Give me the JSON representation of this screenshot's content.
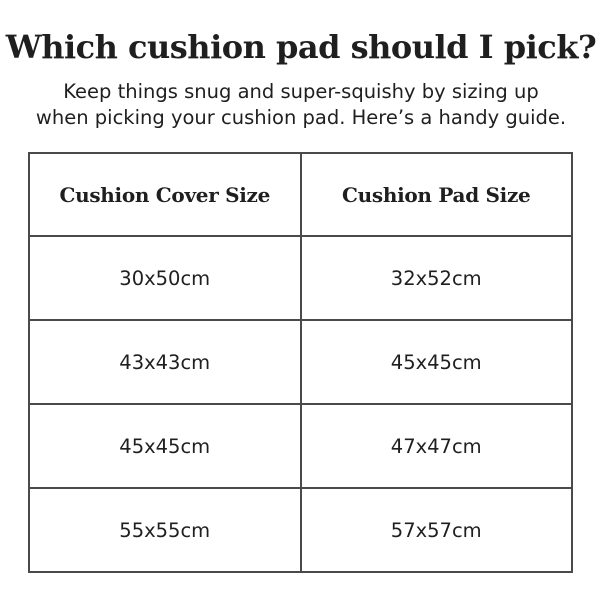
{
  "page": {
    "title": "Which cushion pad should I pick?",
    "subtitle_line1": "Keep things snug and super-squishy by sizing up",
    "subtitle_line2": "when picking your cushion pad. Here’s a handy guide."
  },
  "table": {
    "columns": [
      "Cushion Cover Size",
      "Cushion Pad Size"
    ],
    "rows": [
      [
        "30x50cm",
        "32x52cm"
      ],
      [
        "43x43cm",
        "45x45cm"
      ],
      [
        "45x45cm",
        "47x47cm"
      ],
      [
        "55x55cm",
        "57x57cm"
      ]
    ]
  },
  "colors": {
    "text": "#1f1f1f",
    "border": "#4a4a4a",
    "background": "#ffffff"
  }
}
